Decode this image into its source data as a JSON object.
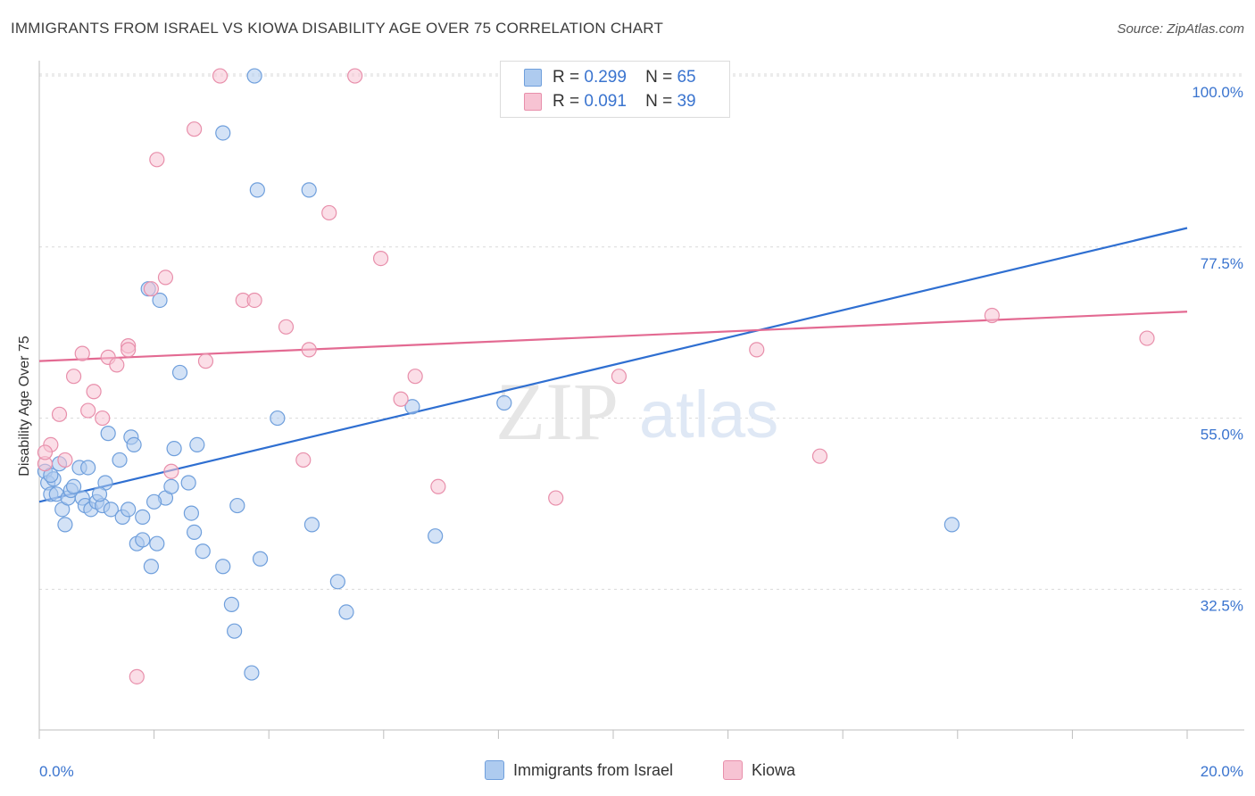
{
  "title": "IMMIGRANTS FROM ISRAEL VS KIOWA DISABILITY AGE OVER 75 CORRELATION CHART",
  "source": "Source: ZipAtlas.com",
  "watermark": {
    "part1": "ZIP",
    "part2": "atlas"
  },
  "legend_top": [
    {
      "r_label": "R =",
      "r_value": "0.299",
      "n_label": "N =",
      "n_value": "65"
    },
    {
      "r_label": "R =",
      "r_value": "0.091",
      "n_label": "N =",
      "n_value": "39"
    }
  ],
  "legend_bottom": [
    "Immigrants from Israel",
    "Kiowa"
  ],
  "colors": {
    "israel_fill": "#aecbef",
    "israel_stroke": "#6f9fdc",
    "israel_line": "#2f6fd1",
    "kiowa_fill": "#f7c3d3",
    "kiowa_stroke": "#e88fab",
    "kiowa_line": "#e36a92",
    "axis_text": "#3a74cf",
    "grid": "#d9d9d9"
  },
  "chart_data": {
    "type": "scatter",
    "title": "IMMIGRANTS FROM ISRAEL VS KIOWA DISABILITY AGE OVER 75 CORRELATION CHART",
    "xlabel": "",
    "ylabel": "Disability Age Over 75",
    "xlim": [
      0,
      20
    ],
    "ylim": [
      14,
      102
    ],
    "x_tick_labels": [
      "0.0%",
      "20.0%"
    ],
    "y_ticks": [
      32.5,
      55.0,
      77.5,
      100.0
    ],
    "y_tick_labels": [
      "32.5%",
      "55.0%",
      "77.5%",
      "100.0%"
    ],
    "grid": true,
    "legend_position": "top-center",
    "series": [
      {
        "name": "Immigrants from Israel",
        "points": [
          [
            0.1,
            48.0
          ],
          [
            0.15,
            46.5
          ],
          [
            0.2,
            45.0
          ],
          [
            0.25,
            47.0
          ],
          [
            0.3,
            45.0
          ],
          [
            0.35,
            49.0
          ],
          [
            0.4,
            43.0
          ],
          [
            0.45,
            41.0
          ],
          [
            0.5,
            44.5
          ],
          [
            0.55,
            45.5
          ],
          [
            0.6,
            46.0
          ],
          [
            0.7,
            48.5
          ],
          [
            0.75,
            44.5
          ],
          [
            0.8,
            43.5
          ],
          [
            0.85,
            48.5
          ],
          [
            0.9,
            43.0
          ],
          [
            1.0,
            44.0
          ],
          [
            1.1,
            43.5
          ],
          [
            1.15,
            46.5
          ],
          [
            1.2,
            53.0
          ],
          [
            1.25,
            43.0
          ],
          [
            1.4,
            49.5
          ],
          [
            1.45,
            42.0
          ],
          [
            1.55,
            43.0
          ],
          [
            1.6,
            52.5
          ],
          [
            1.65,
            51.5
          ],
          [
            1.7,
            38.5
          ],
          [
            1.8,
            39.0
          ],
          [
            1.8,
            42.0
          ],
          [
            1.9,
            72.0
          ],
          [
            1.95,
            35.5
          ],
          [
            2.05,
            38.5
          ],
          [
            2.1,
            70.5
          ],
          [
            2.2,
            44.5
          ],
          [
            2.3,
            46.0
          ],
          [
            2.35,
            51.0
          ],
          [
            2.45,
            61.0
          ],
          [
            2.6,
            46.5
          ],
          [
            2.65,
            42.5
          ],
          [
            2.7,
            40.0
          ],
          [
            2.75,
            51.5
          ],
          [
            2.85,
            37.5
          ],
          [
            3.2,
            92.5
          ],
          [
            3.2,
            35.5
          ],
          [
            3.35,
            30.5
          ],
          [
            3.4,
            27.0
          ],
          [
            3.45,
            43.5
          ],
          [
            3.7,
            21.5
          ],
          [
            3.75,
            100.0
          ],
          [
            3.8,
            85.0
          ],
          [
            3.85,
            36.5
          ],
          [
            4.15,
            55.0
          ],
          [
            4.7,
            85.0
          ],
          [
            4.75,
            41.0
          ],
          [
            5.2,
            33.5
          ],
          [
            5.35,
            29.5
          ],
          [
            6.5,
            56.5
          ],
          [
            6.9,
            39.5
          ],
          [
            8.1,
            57.0
          ],
          [
            10.3,
            100.0
          ],
          [
            10.7,
            100.0
          ],
          [
            15.9,
            41.0
          ],
          [
            0.2,
            47.5
          ],
          [
            1.05,
            45.0
          ],
          [
            2.0,
            44.0
          ]
        ],
        "trendline": {
          "x": [
            0,
            20
          ],
          "y": [
            44.0,
            80.0
          ]
        }
      },
      {
        "name": "Kiowa",
        "points": [
          [
            0.1,
            49.0
          ],
          [
            0.2,
            51.5
          ],
          [
            0.35,
            55.5
          ],
          [
            0.45,
            49.5
          ],
          [
            0.6,
            60.5
          ],
          [
            0.75,
            63.5
          ],
          [
            0.85,
            56.0
          ],
          [
            0.95,
            58.5
          ],
          [
            1.1,
            55.0
          ],
          [
            1.2,
            63.0
          ],
          [
            1.35,
            62.0
          ],
          [
            1.55,
            64.5
          ],
          [
            1.55,
            64.0
          ],
          [
            1.7,
            21.0
          ],
          [
            1.95,
            72.0
          ],
          [
            2.05,
            89.0
          ],
          [
            2.2,
            73.5
          ],
          [
            2.3,
            48.0
          ],
          [
            2.7,
            93.0
          ],
          [
            2.9,
            62.5
          ],
          [
            3.15,
            100.0
          ],
          [
            3.55,
            70.5
          ],
          [
            3.75,
            70.5
          ],
          [
            4.3,
            67.0
          ],
          [
            4.6,
            49.5
          ],
          [
            4.7,
            64.0
          ],
          [
            5.05,
            82.0
          ],
          [
            5.5,
            100.0
          ],
          [
            5.95,
            76.0
          ],
          [
            6.3,
            57.5
          ],
          [
            6.55,
            60.5
          ],
          [
            6.95,
            46.0
          ],
          [
            9.0,
            44.5
          ],
          [
            10.1,
            60.5
          ],
          [
            12.5,
            64.0
          ],
          [
            13.6,
            50.0
          ],
          [
            16.6,
            68.5
          ],
          [
            19.3,
            65.5
          ],
          [
            0.1,
            50.5
          ]
        ],
        "trendline": {
          "x": [
            0,
            20
          ],
          "y": [
            62.5,
            69.0
          ]
        }
      }
    ]
  }
}
